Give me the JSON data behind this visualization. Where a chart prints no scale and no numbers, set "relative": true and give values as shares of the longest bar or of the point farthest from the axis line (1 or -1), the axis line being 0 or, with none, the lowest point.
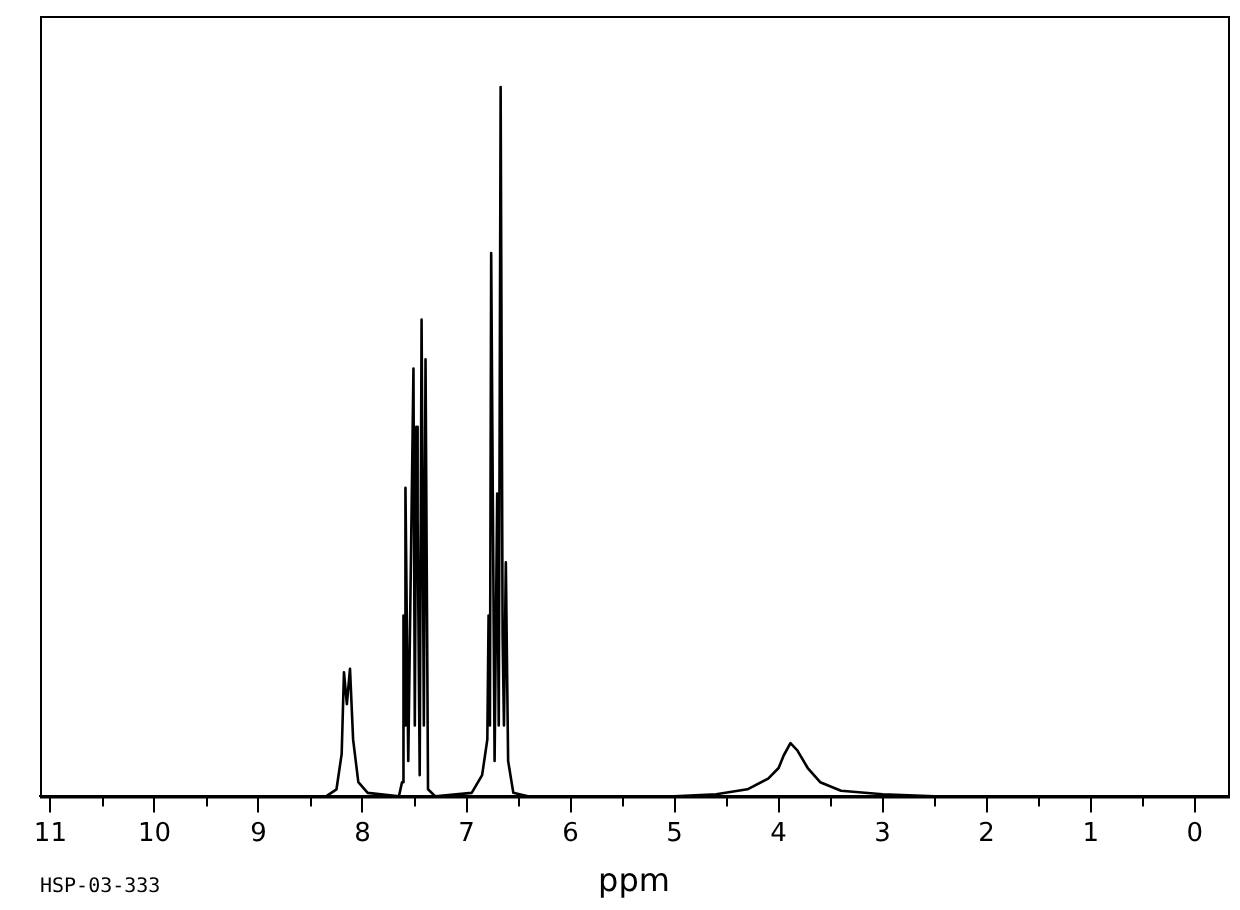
{
  "chart_data": {
    "type": "line",
    "relative": true,
    "xlabel": "ppm",
    "annotations": [
      "HSP-03-333"
    ],
    "xlim": [
      11.1,
      -0.32
    ],
    "xticks": [
      11,
      {
        "value": 10.5,
        "label": null
      },
      10,
      {
        "value": 9.5,
        "label": null
      },
      9,
      {
        "value": 8.5,
        "label": null
      },
      8,
      {
        "value": 7.5,
        "label": null
      },
      7,
      {
        "value": 6.5,
        "label": null
      },
      6,
      {
        "value": 5.5,
        "label": null
      },
      5,
      {
        "value": 4.5,
        "label": null
      },
      4,
      {
        "value": 3.5,
        "label": null
      },
      3,
      {
        "value": 2.5,
        "label": null
      },
      2,
      {
        "value": 1.5,
        "label": null
      },
      1,
      {
        "value": 0.5,
        "label": null
      },
      0
    ],
    "tick_labels": "x",
    "grid": false,
    "legend": false,
    "marker": "none",
    "line_style": "solid",
    "series": [
      {
        "color": "#000000",
        "x": [
          11.1,
          8.35,
          8.25,
          8.2,
          8.178,
          8.15,
          8.12,
          8.09,
          8.04,
          7.95,
          7.65,
          7.62,
          7.606,
          7.595,
          7.587,
          7.56,
          7.51,
          7.497,
          7.483,
          7.47,
          7.45,
          7.432,
          7.41,
          7.394,
          7.37,
          7.3,
          6.95,
          6.85,
          6.8,
          6.788,
          6.775,
          6.763,
          6.73,
          6.705,
          6.69,
          6.672,
          6.653,
          6.64,
          6.622,
          6.6,
          6.55,
          6.4,
          5.0,
          4.6,
          4.3,
          4.1,
          4.0,
          3.95,
          3.886,
          3.82,
          3.72,
          3.6,
          3.4,
          3.0,
          2.5,
          -0.32
        ],
        "values": [
          0,
          0,
          0.01,
          0.06,
          0.175,
          0.13,
          0.18,
          0.08,
          0.02,
          0.005,
          0,
          0.02,
          0.255,
          0.1,
          0.435,
          0.05,
          0.603,
          0.1,
          0.521,
          0.39,
          0.03,
          0.672,
          0.1,
          0.616,
          0.01,
          0,
          0.005,
          0.03,
          0.08,
          0.255,
          0.1,
          0.766,
          0.05,
          0.427,
          0.1,
          1,
          0.226,
          0.1,
          0.33,
          0.05,
          0.005,
          0,
          0,
          0.003,
          0.01,
          0.025,
          0.04,
          0.058,
          0.075,
          0.065,
          0.04,
          0.02,
          0.008,
          0.003,
          0,
          0
        ]
      }
    ]
  }
}
